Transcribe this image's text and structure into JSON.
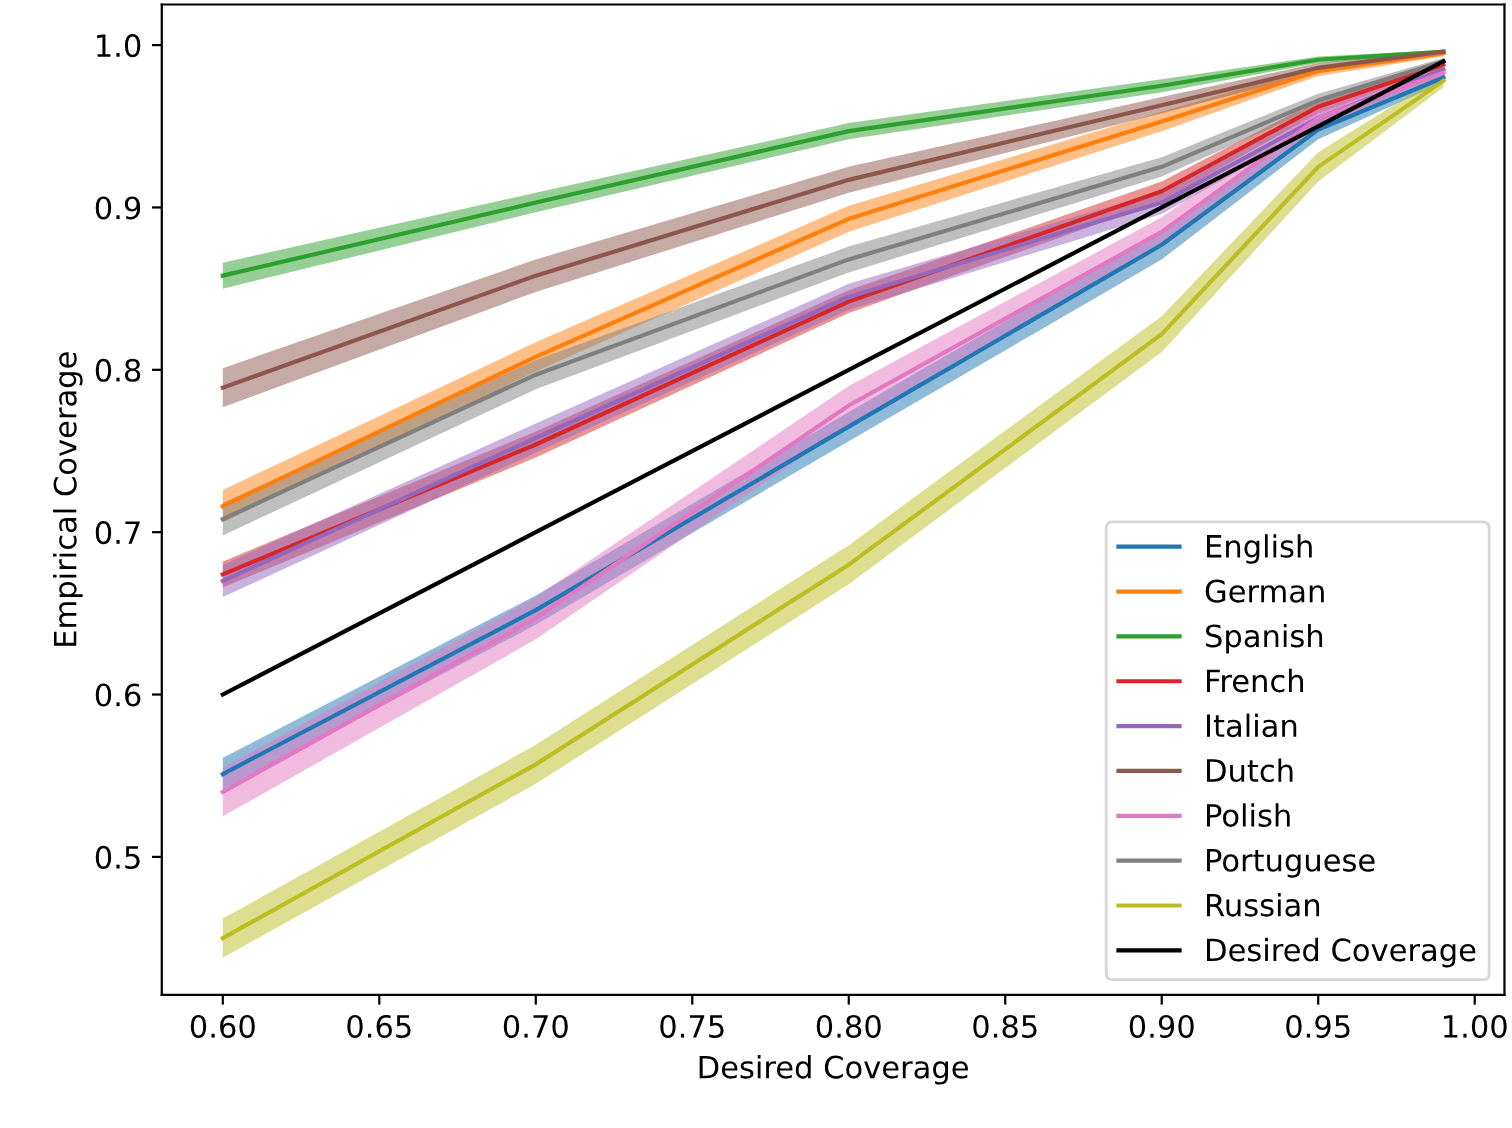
{
  "chart_data": {
    "type": "line",
    "xlabel": "Desired Coverage",
    "ylabel": "Empirical Coverage",
    "x": [
      0.6,
      0.7,
      0.8,
      0.9,
      0.95,
      0.99
    ],
    "series": [
      {
        "name": "English",
        "color": "#1f77b4",
        "values": [
          0.551,
          0.652,
          0.765,
          0.877,
          0.948,
          0.98
        ],
        "lower": [
          0.541,
          0.643,
          0.756,
          0.868,
          0.942,
          0.977
        ],
        "upper": [
          0.561,
          0.661,
          0.774,
          0.886,
          0.954,
          0.983
        ]
      },
      {
        "name": "German",
        "color": "#ff7f0e",
        "values": [
          0.716,
          0.808,
          0.893,
          0.953,
          0.984,
          0.995
        ],
        "lower": [
          0.706,
          0.799,
          0.885,
          0.947,
          0.981,
          0.993
        ],
        "upper": [
          0.726,
          0.817,
          0.901,
          0.959,
          0.987,
          0.997
        ]
      },
      {
        "name": "Spanish",
        "color": "#2ca02c",
        "values": [
          0.858,
          0.903,
          0.947,
          0.975,
          0.991,
          0.996
        ],
        "lower": [
          0.85,
          0.897,
          0.942,
          0.971,
          0.989,
          0.995
        ],
        "upper": [
          0.866,
          0.909,
          0.952,
          0.979,
          0.993,
          0.997
        ]
      },
      {
        "name": "French",
        "color": "#d62728",
        "values": [
          0.674,
          0.754,
          0.842,
          0.91,
          0.962,
          0.988
        ],
        "lower": [
          0.666,
          0.746,
          0.835,
          0.904,
          0.958,
          0.986
        ],
        "upper": [
          0.682,
          0.762,
          0.849,
          0.916,
          0.966,
          0.99
        ]
      },
      {
        "name": "Italian",
        "color": "#9467bd",
        "values": [
          0.67,
          0.758,
          0.845,
          0.903,
          0.955,
          0.985
        ],
        "lower": [
          0.66,
          0.749,
          0.837,
          0.896,
          0.95,
          0.983
        ],
        "upper": [
          0.68,
          0.767,
          0.853,
          0.91,
          0.96,
          0.987
        ]
      },
      {
        "name": "Dutch",
        "color": "#8c564b",
        "values": [
          0.789,
          0.858,
          0.917,
          0.963,
          0.986,
          0.996
        ],
        "lower": [
          0.777,
          0.848,
          0.909,
          0.958,
          0.983,
          0.995
        ],
        "upper": [
          0.801,
          0.868,
          0.925,
          0.968,
          0.989,
          0.997
        ]
      },
      {
        "name": "Polish",
        "color": "#e377c2",
        "values": [
          0.54,
          0.647,
          0.778,
          0.885,
          0.955,
          0.983
        ],
        "lower": [
          0.525,
          0.634,
          0.766,
          0.876,
          0.949,
          0.98
        ],
        "upper": [
          0.555,
          0.66,
          0.79,
          0.894,
          0.961,
          0.986
        ]
      },
      {
        "name": "Portuguese",
        "color": "#7f7f7f",
        "values": [
          0.708,
          0.797,
          0.868,
          0.925,
          0.966,
          0.99
        ],
        "lower": [
          0.698,
          0.788,
          0.86,
          0.919,
          0.962,
          0.988
        ],
        "upper": [
          0.718,
          0.806,
          0.876,
          0.931,
          0.97,
          0.992
        ]
      },
      {
        "name": "Russian",
        "color": "#bcbd22",
        "values": [
          0.45,
          0.557,
          0.68,
          0.822,
          0.925,
          0.978
        ],
        "lower": [
          0.438,
          0.545,
          0.668,
          0.811,
          0.916,
          0.974
        ],
        "upper": [
          0.462,
          0.569,
          0.692,
          0.833,
          0.934,
          0.982
        ]
      },
      {
        "name": "Desired Coverage",
        "color": "#000000",
        "values": [
          0.6,
          0.7,
          0.8,
          0.9,
          0.95,
          0.99
        ]
      }
    ],
    "xlim": [
      0.5805,
      1.0095
    ],
    "ylim": [
      0.415,
      1.025
    ],
    "xticks": [
      {
        "value": 0.6,
        "label": "0.60"
      },
      {
        "value": 0.65,
        "label": "0.65"
      },
      {
        "value": 0.7,
        "label": "0.70"
      },
      {
        "value": 0.75,
        "label": "0.75"
      },
      {
        "value": 0.8,
        "label": "0.80"
      },
      {
        "value": 0.85,
        "label": "0.85"
      },
      {
        "value": 0.9,
        "label": "0.90"
      },
      {
        "value": 0.95,
        "label": "0.95"
      },
      {
        "value": 1.0,
        "label": "1.00"
      }
    ],
    "yticks": [
      0.5,
      0.6,
      0.7,
      0.8,
      0.9,
      {
        "value": 1.0,
        "label": "1.0"
      }
    ],
    "legend": "lower right",
    "grid": false
  }
}
